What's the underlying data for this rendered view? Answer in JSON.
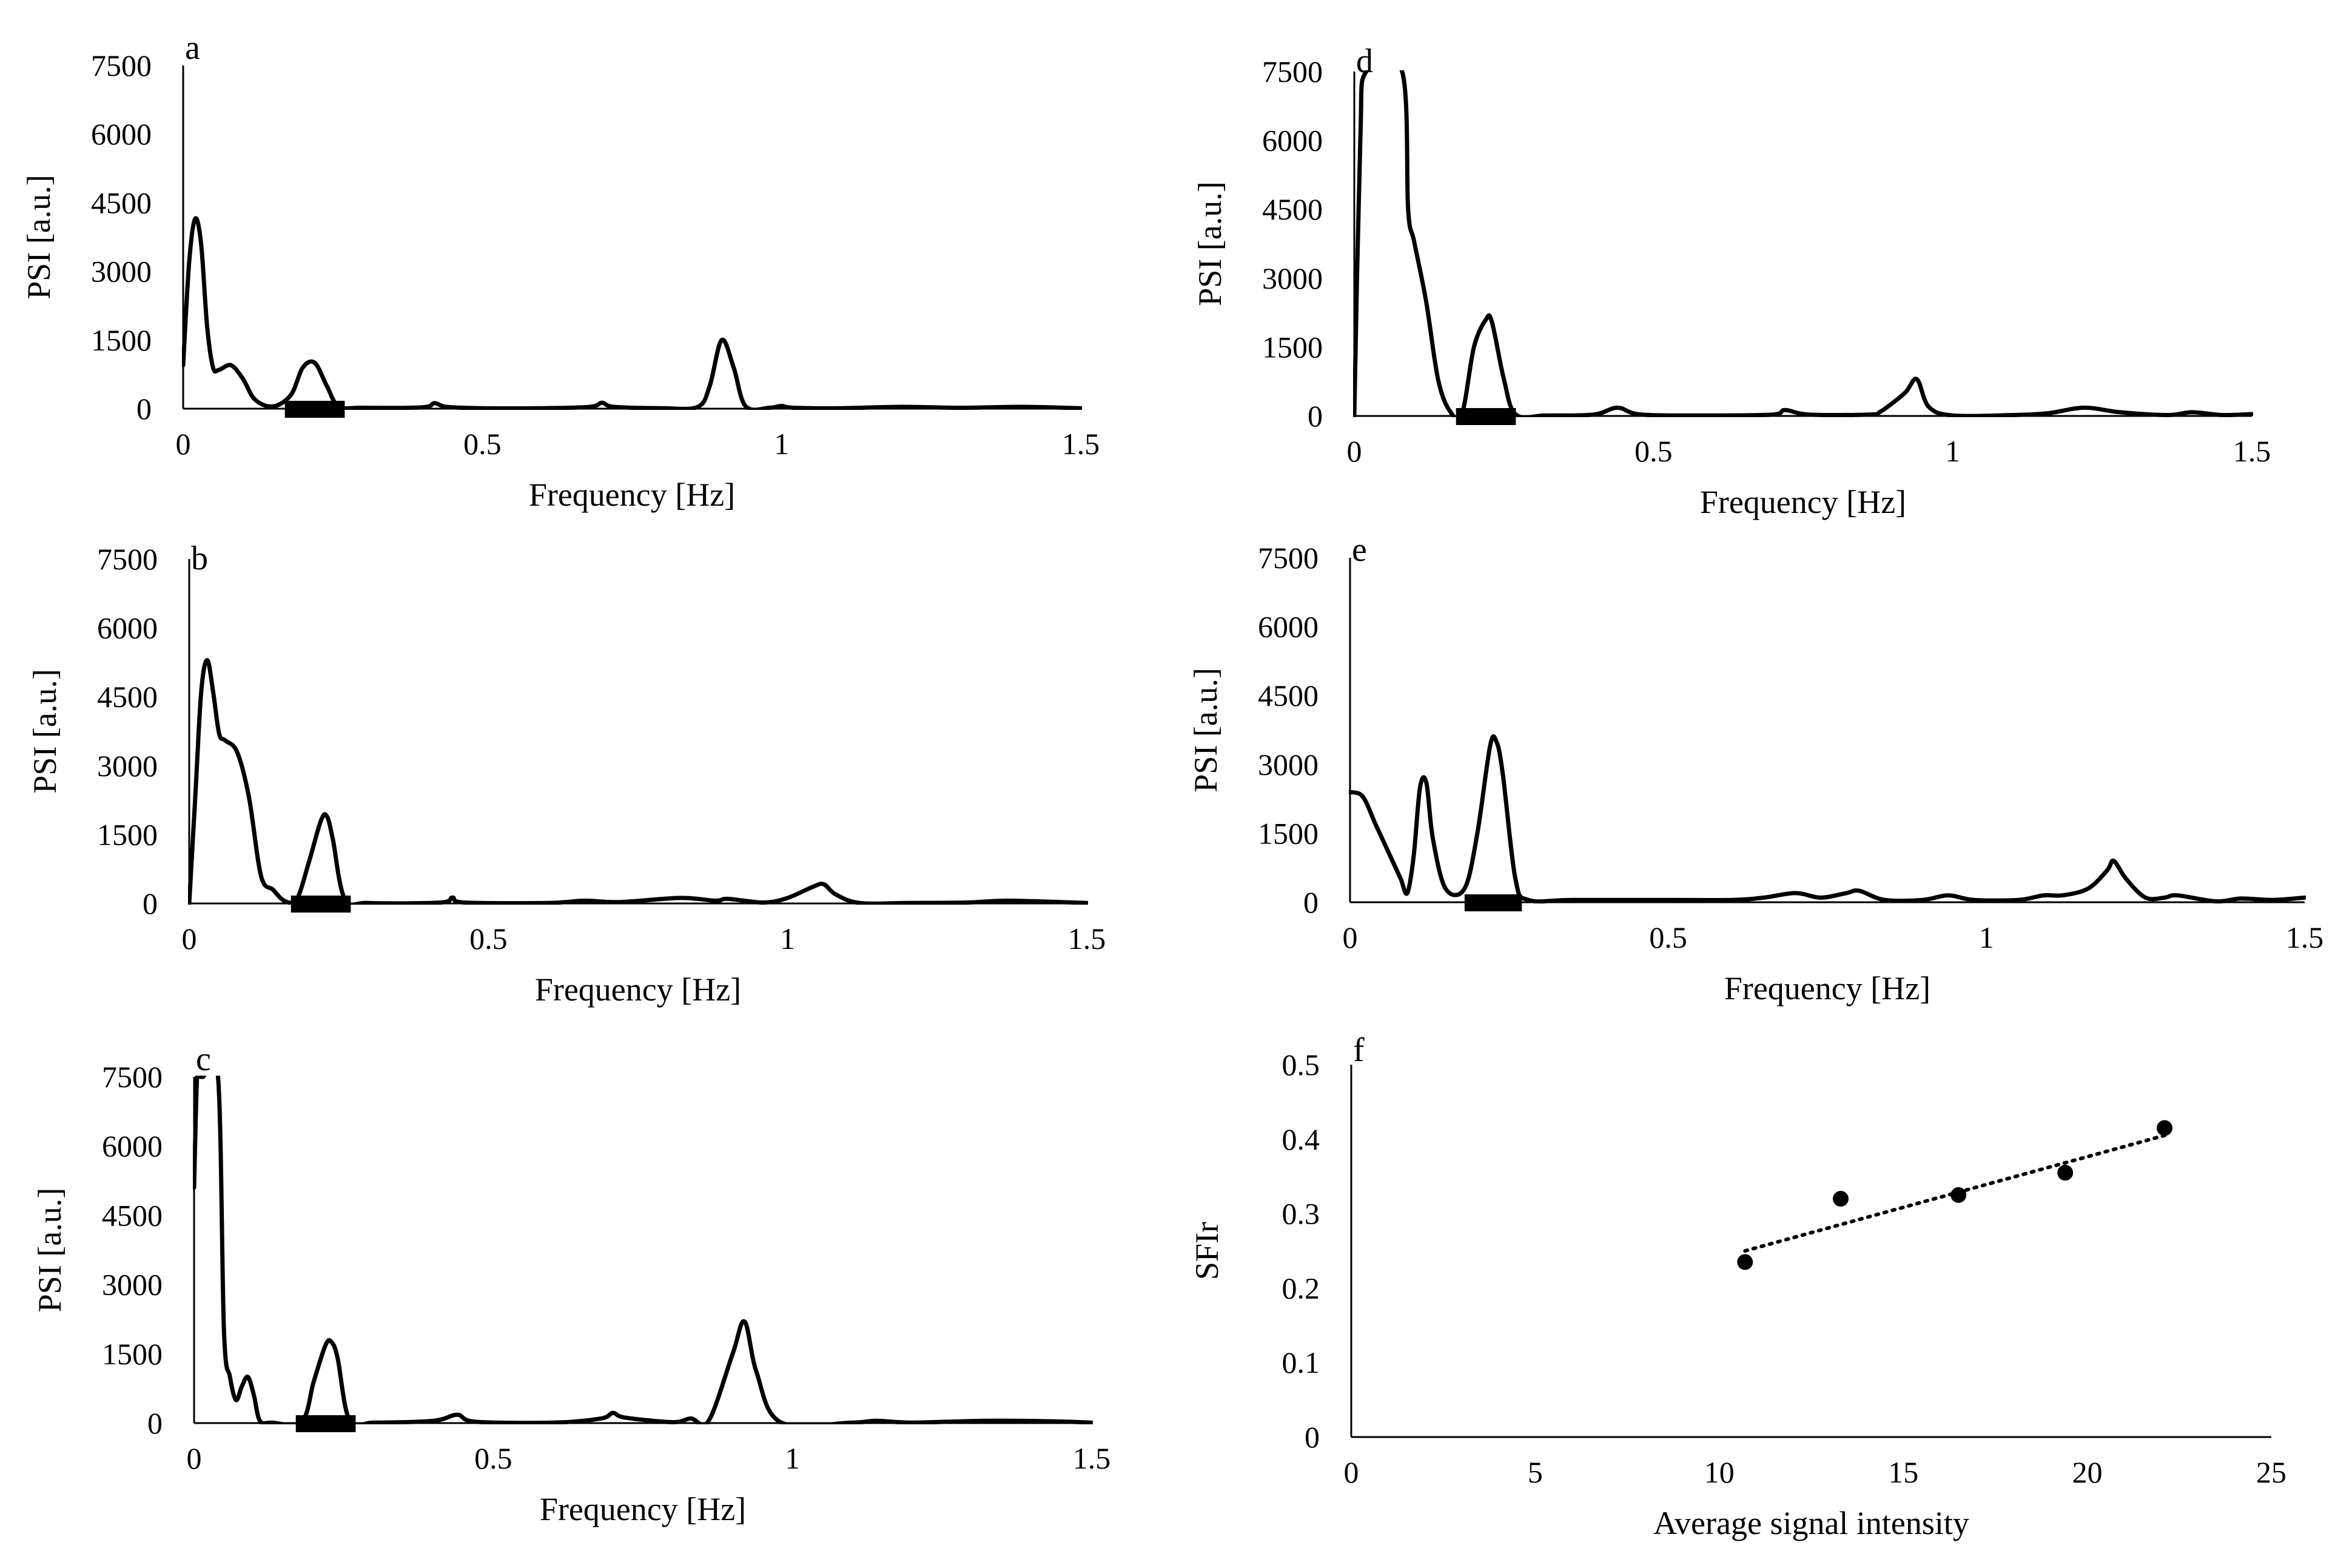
{
  "figure": {
    "description": ""
  },
  "chart_data": [
    {
      "id": "a",
      "panel_label": "a",
      "type": "line",
      "xlabel": "Frequency [Hz]",
      "ylabel": "PSI [a.u.]",
      "xlim": [
        0,
        1.5
      ],
      "ylim": [
        0,
        7500
      ],
      "xticks": [
        0,
        0.5,
        1,
        1.5
      ],
      "xtick_labels": [
        "0",
        "0.5",
        "1",
        "1.5"
      ],
      "yticks": [
        0,
        1500,
        3000,
        4500,
        6000,
        7500
      ],
      "ytick_labels": [
        "0",
        "1500",
        "3000",
        "4500",
        "6000",
        "7500"
      ],
      "band": [
        0.17,
        0.27
      ],
      "x": [
        0,
        0.01,
        0.02,
        0.03,
        0.04,
        0.05,
        0.06,
        0.08,
        0.1,
        0.12,
        0.15,
        0.18,
        0.2,
        0.22,
        0.24,
        0.26,
        0.3,
        0.4,
        0.42,
        0.44,
        0.5,
        0.6,
        0.68,
        0.7,
        0.72,
        0.8,
        0.86,
        0.88,
        0.9,
        0.92,
        0.94,
        0.98,
        1.0,
        1.02,
        1.1,
        1.2,
        1.3,
        1.4,
        1.5
      ],
      "y": [
        950,
        3200,
        4150,
        3600,
        1800,
        900,
        850,
        950,
        650,
        200,
        50,
        300,
        900,
        1000,
        500,
        50,
        20,
        30,
        120,
        40,
        10,
        10,
        40,
        130,
        40,
        10,
        40,
        500,
        1500,
        900,
        50,
        20,
        60,
        20,
        10,
        40,
        20,
        40,
        10
      ]
    },
    {
      "id": "b",
      "panel_label": "b",
      "type": "line",
      "xlabel": "Frequency [Hz]",
      "ylabel": "PSI [a.u.]",
      "xlim": [
        0,
        1.5
      ],
      "ylim": [
        0,
        7500
      ],
      "xticks": [
        0,
        0.5,
        1,
        1.5
      ],
      "xtick_labels": [
        "0",
        "0.5",
        "1",
        "1.5"
      ],
      "yticks": [
        0,
        1500,
        3000,
        4500,
        6000,
        7500
      ],
      "ytick_labels": [
        "0",
        "1500",
        "3000",
        "4500",
        "6000",
        "7500"
      ],
      "band": [
        0.17,
        0.27
      ],
      "x": [
        0,
        0.01,
        0.02,
        0.03,
        0.04,
        0.05,
        0.06,
        0.08,
        0.1,
        0.12,
        0.14,
        0.16,
        0.18,
        0.2,
        0.22,
        0.23,
        0.24,
        0.26,
        0.3,
        0.42,
        0.44,
        0.46,
        0.6,
        0.66,
        0.72,
        0.82,
        0.88,
        0.9,
        0.96,
        1.0,
        1.04,
        1.06,
        1.08,
        1.12,
        1.2,
        1.3,
        1.37,
        1.5
      ],
      "y": [
        0,
        2300,
        4600,
        5300,
        4600,
        3700,
        3550,
        3300,
        2300,
        600,
        300,
        50,
        100,
        900,
        1800,
        1900,
        1400,
        100,
        10,
        20,
        130,
        20,
        10,
        60,
        30,
        120,
        60,
        100,
        20,
        120,
        350,
        420,
        200,
        10,
        10,
        20,
        60,
        10
      ]
    },
    {
      "id": "c",
      "panel_label": "c",
      "type": "line",
      "xlabel": "Frequency [Hz]",
      "ylabel": "PSI [a.u.]",
      "xlim": [
        0,
        1.5
      ],
      "ylim": [
        0,
        7500
      ],
      "xticks": [
        0,
        0.5,
        1,
        1.5
      ],
      "xtick_labels": [
        "0",
        "0.5",
        "1",
        "1.5"
      ],
      "yticks": [
        0,
        1500,
        3000,
        4500,
        6000,
        7500
      ],
      "ytick_labels": [
        "0",
        "1500",
        "3000",
        "4500",
        "6000",
        "7500"
      ],
      "band": [
        0.17,
        0.27
      ],
      "x": [
        0,
        0.005,
        0.01,
        0.015,
        0.04,
        0.05,
        0.06,
        0.07,
        0.08,
        0.09,
        0.1,
        0.11,
        0.13,
        0.18,
        0.2,
        0.22,
        0.23,
        0.24,
        0.26,
        0.3,
        0.4,
        0.44,
        0.47,
        0.6,
        0.68,
        0.7,
        0.72,
        0.8,
        0.83,
        0.86,
        0.9,
        0.92,
        0.94,
        0.98,
        1.1,
        1.14,
        1.2,
        1.32,
        1.43,
        1.5
      ],
      "y": [
        5100,
        7500,
        7500,
        7500,
        7500,
        2000,
        1000,
        500,
        800,
        1000,
        600,
        50,
        10,
        30,
        900,
        1700,
        1750,
        1400,
        50,
        10,
        50,
        180,
        30,
        10,
        100,
        220,
        120,
        20,
        100,
        50,
        1500,
        2200,
        1100,
        20,
        10,
        50,
        10,
        50,
        40,
        10
      ]
    },
    {
      "id": "d",
      "panel_label": "d",
      "type": "line",
      "xlabel": "Frequency [Hz]",
      "ylabel": "PSI [a.u.]",
      "xlim": [
        0,
        1.5
      ],
      "ylim": [
        0,
        7500
      ],
      "xticks": [
        0,
        0.5,
        1,
        1.5
      ],
      "xtick_labels": [
        "0",
        "0.5",
        "1",
        "1.5"
      ],
      "yticks": [
        0,
        1500,
        3000,
        4500,
        6000,
        7500
      ],
      "ytick_labels": [
        "0",
        "1500",
        "3000",
        "4500",
        "6000",
        "7500"
      ],
      "band": [
        0.17,
        0.27
      ],
      "x": [
        0,
        0.01,
        0.02,
        0.08,
        0.09,
        0.1,
        0.12,
        0.14,
        0.16,
        0.18,
        0.2,
        0.22,
        0.23,
        0.25,
        0.27,
        0.32,
        0.4,
        0.44,
        0.48,
        0.6,
        0.7,
        0.72,
        0.76,
        0.86,
        0.88,
        0.92,
        0.94,
        0.96,
        1.0,
        1.1,
        1.16,
        1.22,
        1.28,
        1.36,
        1.4,
        1.45,
        1.5
      ],
      "y": [
        0,
        6000,
        7500,
        7500,
        4500,
        3800,
        2500,
        800,
        100,
        50,
        1500,
        2100,
        2050,
        800,
        30,
        10,
        30,
        180,
        30,
        10,
        30,
        130,
        30,
        30,
        100,
        500,
        800,
        200,
        10,
        20,
        60,
        180,
        80,
        20,
        80,
        20,
        40
      ]
    },
    {
      "id": "e",
      "panel_label": "e",
      "type": "line",
      "xlabel": "Frequency [Hz]",
      "ylabel": "PSI [a.u.]",
      "xlim": [
        0,
        1.5
      ],
      "ylim": [
        0,
        7500
      ],
      "xticks": [
        0,
        0.5,
        1,
        1.5
      ],
      "xtick_labels": [
        "0",
        "0.5",
        "1",
        "1.5"
      ],
      "yticks": [
        0,
        1500,
        3000,
        4500,
        6000,
        7500
      ],
      "ytick_labels": [
        "0",
        "1500",
        "3000",
        "4500",
        "6000",
        "7500"
      ],
      "band": [
        0.18,
        0.27
      ],
      "x": [
        0,
        0.02,
        0.04,
        0.06,
        0.07,
        0.08,
        0.09,
        0.1,
        0.11,
        0.12,
        0.13,
        0.15,
        0.18,
        0.2,
        0.22,
        0.23,
        0.24,
        0.26,
        0.28,
        0.35,
        0.5,
        0.6,
        0.65,
        0.7,
        0.74,
        0.78,
        0.8,
        0.84,
        0.9,
        0.94,
        0.98,
        1.05,
        1.09,
        1.12,
        1.16,
        1.19,
        1.2,
        1.22,
        1.25,
        1.28,
        1.3,
        1.36,
        1.4,
        1.45,
        1.5
      ],
      "y": [
        2400,
        2300,
        1700,
        1100,
        800,
        500,
        200,
        1000,
        2500,
        2600,
        1400,
        300,
        300,
        1500,
        3400,
        3500,
        2800,
        500,
        50,
        50,
        50,
        50,
        100,
        200,
        100,
        200,
        250,
        50,
        50,
        150,
        50,
        50,
        150,
        150,
        300,
        700,
        900,
        500,
        100,
        100,
        150,
        20,
        80,
        50,
        100
      ]
    },
    {
      "id": "f",
      "panel_label": "f",
      "type": "scatter",
      "xlabel": "Average signal intensity",
      "ylabel": "SFIr",
      "xlim": [
        0,
        25
      ],
      "ylim": [
        0,
        0.5
      ],
      "xticks": [
        0,
        5,
        10,
        15,
        20,
        25
      ],
      "xtick_labels": [
        "0",
        "5",
        "10",
        "15",
        "20",
        "25"
      ],
      "yticks": [
        0,
        0.1,
        0.2,
        0.3,
        0.4,
        0.5
      ],
      "ytick_labels": [
        "0",
        "0.1",
        "0.2",
        "0.3",
        "0.4",
        "0.5"
      ],
      "x": [
        10.7,
        13.3,
        16.5,
        19.4,
        22.1
      ],
      "y": [
        0.235,
        0.32,
        0.325,
        0.355,
        0.415
      ],
      "trendline": {
        "type": "linear",
        "x": [
          10.7,
          22.1
        ],
        "y": [
          0.25,
          0.405
        ]
      }
    }
  ]
}
